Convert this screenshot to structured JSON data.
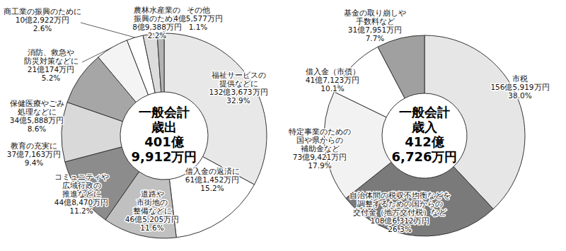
{
  "chart_data": [
    {
      "type": "pie",
      "title": "一般会計\n歳出",
      "subtitle": "401億\n9,912万円",
      "categories": [
        "福祉サービスの\n提供などに",
        "借入金の返済に",
        "道路や\n市街地の\n整備などに",
        "コミュニティや\n広域行政の\n推進などに",
        "教育の充実に",
        "保健医療やごみ\n処理などに",
        "消防、救急や\n防災対策などに",
        "商工業の振興のために",
        "農林水産業の\n振興のために",
        "その他"
      ],
      "values": [
        32.9,
        15.2,
        11.6,
        11.2,
        9.4,
        8.6,
        5.2,
        2.6,
        2.2,
        1.1
      ],
      "value_labels": [
        "32.9%",
        "15.2%",
        "11.6%",
        "11.2%",
        "9.4%",
        "8.6%",
        "5.2%",
        "2.6%",
        "2.2%",
        "1.1%"
      ],
      "amount_labels": [
        "132億3,673万円",
        "61億1,452万円",
        "46億5,205万円",
        "44億8,470万円",
        "37億7,163万円",
        "34億5,888万円",
        "21億174万円",
        "10億2,922万円",
        "8億9,388万円",
        "4億5,577万円"
      ],
      "colors": [
        "#e8e8e8",
        "#ffffff",
        "#c0c0c0",
        "#8c8c8c",
        "#d9d9d9",
        "#a6a6a6",
        "#f4f4f4",
        "#ffffff",
        "#dcdcdc",
        "#b3b3b3"
      ],
      "data_labels": true
    },
    {
      "type": "pie",
      "title": "一般会計\n歳入",
      "subtitle": "412億\n6,726万円",
      "categories": [
        "市税",
        "自治体間の税収不均衡などを\n調整するための国からの\n交付金（地方交付税）など",
        "特定事業のための\n国や県からの\n補助金など",
        "借入金（市債）",
        "基金の取り崩しや\n手数料など"
      ],
      "values": [
        38.0,
        26.3,
        17.9,
        10.1,
        7.7
      ],
      "value_labels": [
        "38.0%",
        "26.3%",
        "17.9%",
        "10.1%",
        "7.7%"
      ],
      "amount_labels": [
        "156億5,919万円",
        "108億6,312万円",
        "73億9,421万円",
        "41億7,123万円",
        "31億7,951万円"
      ],
      "colors": [
        "#e6e6e6",
        "#7a7a7a",
        "#f2f2f2",
        "#ffffff",
        "#a0a0a0"
      ],
      "data_labels": true
    }
  ]
}
